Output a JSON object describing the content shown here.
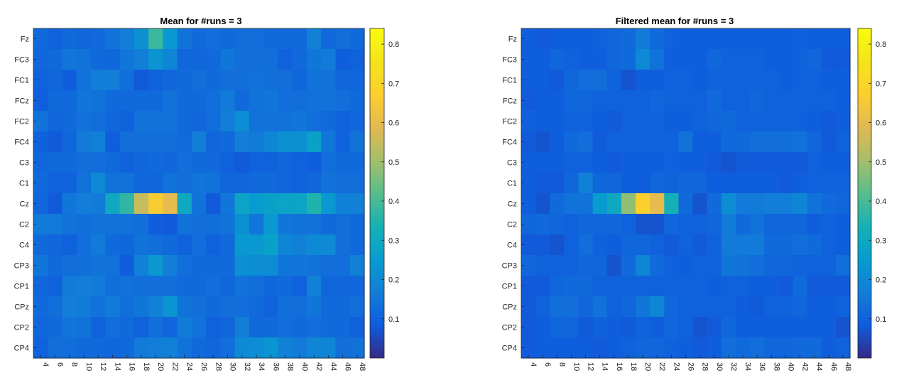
{
  "chart_data": [
    {
      "type": "heatmap",
      "title": "Mean for #runs = 3",
      "x": [
        4,
        6,
        8,
        10,
        12,
        14,
        16,
        18,
        20,
        22,
        24,
        26,
        28,
        30,
        32,
        34,
        36,
        38,
        40,
        42,
        44,
        46,
        48
      ],
      "xticks": [
        "4",
        "6",
        "8",
        "10",
        "12",
        "14",
        "16",
        "18",
        "20",
        "22",
        "24",
        "26",
        "28",
        "30",
        "32",
        "34",
        "36",
        "38",
        "40",
        "42",
        "44",
        "46",
        "48"
      ],
      "y": [
        "Fz",
        "FC3",
        "FC1",
        "FCz",
        "FC2",
        "FC4",
        "C3",
        "C1",
        "Cz",
        "C2",
        "C4",
        "CP3",
        "CP1",
        "CPz",
        "CP2",
        "CP4"
      ],
      "xlim": [
        3,
        49
      ],
      "colorbar": {
        "min": 0,
        "max": 0.84,
        "ticks": [
          0.1,
          0.2,
          0.3,
          0.4,
          0.5,
          0.6,
          0.7,
          0.8
        ],
        "tick_labels": [
          "0.1",
          "0.2",
          "0.3",
          "0.4",
          "0.5",
          "0.6",
          "0.7",
          "0.8"
        ],
        "colormap": "parula"
      },
      "values": [
        [
          0.12,
          0.1,
          0.12,
          0.11,
          0.12,
          0.14,
          0.17,
          0.22,
          0.38,
          0.24,
          0.14,
          0.12,
          0.13,
          0.12,
          0.13,
          0.13,
          0.12,
          0.12,
          0.12,
          0.18,
          0.12,
          0.13,
          0.12
        ],
        [
          0.11,
          0.12,
          0.15,
          0.14,
          0.12,
          0.11,
          0.15,
          0.17,
          0.23,
          0.19,
          0.11,
          0.11,
          0.12,
          0.15,
          0.13,
          0.13,
          0.13,
          0.1,
          0.12,
          0.15,
          0.16,
          0.09,
          0.1
        ],
        [
          0.1,
          0.11,
          0.09,
          0.14,
          0.17,
          0.17,
          0.13,
          0.08,
          0.1,
          0.11,
          0.12,
          0.13,
          0.12,
          0.13,
          0.13,
          0.14,
          0.13,
          0.13,
          0.11,
          0.14,
          0.14,
          0.11,
          0.11
        ],
        [
          0.09,
          0.12,
          0.12,
          0.15,
          0.14,
          0.12,
          0.12,
          0.12,
          0.12,
          0.14,
          0.12,
          0.12,
          0.13,
          0.16,
          0.12,
          0.14,
          0.15,
          0.13,
          0.13,
          0.14,
          0.14,
          0.13,
          0.12
        ],
        [
          0.14,
          0.11,
          0.12,
          0.14,
          0.13,
          0.11,
          0.1,
          0.14,
          0.14,
          0.14,
          0.12,
          0.11,
          0.13,
          0.17,
          0.21,
          0.14,
          0.14,
          0.14,
          0.15,
          0.13,
          0.12,
          0.1,
          0.11
        ],
        [
          0.1,
          0.08,
          0.11,
          0.16,
          0.18,
          0.09,
          0.13,
          0.13,
          0.13,
          0.13,
          0.12,
          0.17,
          0.11,
          0.12,
          0.17,
          0.16,
          0.19,
          0.22,
          0.22,
          0.27,
          0.15,
          0.1,
          0.14
        ],
        [
          0.11,
          0.12,
          0.12,
          0.13,
          0.13,
          0.12,
          0.1,
          0.11,
          0.12,
          0.11,
          0.13,
          0.12,
          0.12,
          0.1,
          0.08,
          0.1,
          0.1,
          0.11,
          0.1,
          0.09,
          0.13,
          0.12,
          0.12
        ],
        [
          0.12,
          0.1,
          0.1,
          0.14,
          0.2,
          0.14,
          0.14,
          0.11,
          0.11,
          0.14,
          0.13,
          0.15,
          0.14,
          0.11,
          0.11,
          0.12,
          0.12,
          0.11,
          0.1,
          0.11,
          0.14,
          0.13,
          0.13
        ],
        [
          0.11,
          0.08,
          0.15,
          0.17,
          0.16,
          0.3,
          0.37,
          0.55,
          0.66,
          0.6,
          0.3,
          0.14,
          0.08,
          0.15,
          0.28,
          0.25,
          0.27,
          0.28,
          0.28,
          0.35,
          0.24,
          0.18,
          0.18
        ],
        [
          0.16,
          0.16,
          0.14,
          0.13,
          0.14,
          0.14,
          0.14,
          0.13,
          0.09,
          0.08,
          0.14,
          0.13,
          0.13,
          0.14,
          0.22,
          0.15,
          0.24,
          0.15,
          0.14,
          0.14,
          0.12,
          0.13,
          0.12
        ],
        [
          0.12,
          0.11,
          0.1,
          0.13,
          0.16,
          0.12,
          0.11,
          0.14,
          0.13,
          0.12,
          0.1,
          0.13,
          0.1,
          0.12,
          0.24,
          0.24,
          0.27,
          0.19,
          0.18,
          0.2,
          0.2,
          0.13,
          0.12
        ],
        [
          0.15,
          0.12,
          0.13,
          0.13,
          0.14,
          0.14,
          0.09,
          0.18,
          0.24,
          0.17,
          0.13,
          0.12,
          0.12,
          0.12,
          0.22,
          0.21,
          0.21,
          0.15,
          0.15,
          0.14,
          0.13,
          0.13,
          0.18
        ],
        [
          0.11,
          0.1,
          0.16,
          0.17,
          0.16,
          0.13,
          0.14,
          0.13,
          0.13,
          0.13,
          0.12,
          0.12,
          0.13,
          0.11,
          0.14,
          0.13,
          0.11,
          0.12,
          0.1,
          0.18,
          0.11,
          0.11,
          0.11
        ],
        [
          0.12,
          0.13,
          0.17,
          0.16,
          0.14,
          0.16,
          0.13,
          0.15,
          0.18,
          0.23,
          0.14,
          0.13,
          0.12,
          0.13,
          0.13,
          0.12,
          0.1,
          0.13,
          0.13,
          0.15,
          0.12,
          0.12,
          0.13
        ],
        [
          0.11,
          0.12,
          0.15,
          0.14,
          0.1,
          0.13,
          0.12,
          0.1,
          0.13,
          0.11,
          0.16,
          0.14,
          0.1,
          0.11,
          0.17,
          0.12,
          0.12,
          0.13,
          0.12,
          0.13,
          0.12,
          0.12,
          0.1
        ],
        [
          0.1,
          0.13,
          0.13,
          0.12,
          0.12,
          0.11,
          0.12,
          0.16,
          0.17,
          0.18,
          0.14,
          0.12,
          0.11,
          0.13,
          0.2,
          0.21,
          0.23,
          0.18,
          0.16,
          0.19,
          0.19,
          0.13,
          0.14
        ]
      ]
    },
    {
      "type": "heatmap",
      "title": "Filtered mean for #runs = 3",
      "x": [
        4,
        6,
        8,
        10,
        12,
        14,
        16,
        18,
        20,
        22,
        24,
        26,
        28,
        30,
        32,
        34,
        36,
        38,
        40,
        42,
        44,
        46,
        48
      ],
      "xticks": [
        "4",
        "6",
        "8",
        "10",
        "12",
        "14",
        "16",
        "18",
        "20",
        "22",
        "24",
        "26",
        "28",
        "30",
        "32",
        "34",
        "36",
        "38",
        "40",
        "42",
        "44",
        "46",
        "48"
      ],
      "y": [
        "Fz",
        "FC3",
        "FC1",
        "FCz",
        "FC2",
        "FC4",
        "C3",
        "C1",
        "Cz",
        "C2",
        "C4",
        "CP3",
        "CP1",
        "CPz",
        "CP2",
        "CP4"
      ],
      "xlim": [
        3,
        49
      ],
      "colorbar": {
        "min": 0,
        "max": 0.84,
        "ticks": [
          0.1,
          0.2,
          0.3,
          0.4,
          0.5,
          0.6,
          0.7,
          0.8
        ],
        "tick_labels": [
          "0.1",
          "0.2",
          "0.3",
          "0.4",
          "0.5",
          "0.6",
          "0.7",
          "0.8"
        ],
        "colormap": "parula"
      },
      "values": [
        [
          0.09,
          0.08,
          0.09,
          0.09,
          0.09,
          0.1,
          0.11,
          0.12,
          0.16,
          0.12,
          0.1,
          0.09,
          0.09,
          0.09,
          0.09,
          0.09,
          0.09,
          0.09,
          0.09,
          0.1,
          0.09,
          0.09,
          0.09
        ],
        [
          0.09,
          0.09,
          0.11,
          0.1,
          0.09,
          0.09,
          0.11,
          0.12,
          0.2,
          0.14,
          0.09,
          0.09,
          0.09,
          0.11,
          0.1,
          0.1,
          0.1,
          0.09,
          0.09,
          0.1,
          0.11,
          0.08,
          0.08
        ],
        [
          0.09,
          0.09,
          0.08,
          0.11,
          0.13,
          0.13,
          0.1,
          0.07,
          0.09,
          0.09,
          0.1,
          0.1,
          0.09,
          0.1,
          0.1,
          0.1,
          0.1,
          0.1,
          0.09,
          0.1,
          0.1,
          0.09,
          0.09
        ],
        [
          0.08,
          0.09,
          0.09,
          0.11,
          0.11,
          0.1,
          0.1,
          0.1,
          0.1,
          0.11,
          0.1,
          0.1,
          0.1,
          0.12,
          0.1,
          0.1,
          0.11,
          0.1,
          0.1,
          0.1,
          0.1,
          0.1,
          0.09
        ],
        [
          0.1,
          0.09,
          0.09,
          0.1,
          0.1,
          0.09,
          0.08,
          0.1,
          0.1,
          0.1,
          0.09,
          0.09,
          0.1,
          0.11,
          0.12,
          0.1,
          0.1,
          0.1,
          0.1,
          0.1,
          0.09,
          0.08,
          0.09
        ],
        [
          0.08,
          0.07,
          0.09,
          0.12,
          0.13,
          0.08,
          0.1,
          0.1,
          0.1,
          0.1,
          0.1,
          0.14,
          0.09,
          0.09,
          0.12,
          0.12,
          0.13,
          0.13,
          0.13,
          0.14,
          0.11,
          0.08,
          0.1
        ],
        [
          0.09,
          0.09,
          0.09,
          0.1,
          0.1,
          0.09,
          0.08,
          0.09,
          0.09,
          0.09,
          0.1,
          0.09,
          0.09,
          0.08,
          0.07,
          0.08,
          0.08,
          0.08,
          0.08,
          0.08,
          0.1,
          0.09,
          0.09
        ],
        [
          0.09,
          0.08,
          0.08,
          0.11,
          0.18,
          0.11,
          0.11,
          0.09,
          0.09,
          0.11,
          0.1,
          0.11,
          0.11,
          0.09,
          0.09,
          0.09,
          0.09,
          0.09,
          0.08,
          0.09,
          0.1,
          0.1,
          0.1
        ],
        [
          0.09,
          0.07,
          0.12,
          0.14,
          0.14,
          0.25,
          0.3,
          0.48,
          0.68,
          0.6,
          0.33,
          0.12,
          0.07,
          0.12,
          0.21,
          0.16,
          0.16,
          0.17,
          0.17,
          0.19,
          0.14,
          0.12,
          0.11
        ],
        [
          0.11,
          0.12,
          0.11,
          0.1,
          0.11,
          0.11,
          0.11,
          0.1,
          0.07,
          0.07,
          0.11,
          0.1,
          0.1,
          0.11,
          0.16,
          0.12,
          0.14,
          0.11,
          0.11,
          0.11,
          0.09,
          0.1,
          0.09
        ],
        [
          0.08,
          0.08,
          0.07,
          0.1,
          0.13,
          0.1,
          0.09,
          0.11,
          0.11,
          0.1,
          0.08,
          0.1,
          0.08,
          0.1,
          0.16,
          0.16,
          0.16,
          0.12,
          0.12,
          0.13,
          0.12,
          0.1,
          0.09
        ],
        [
          0.11,
          0.1,
          0.1,
          0.1,
          0.11,
          0.11,
          0.07,
          0.12,
          0.19,
          0.12,
          0.1,
          0.09,
          0.1,
          0.1,
          0.15,
          0.14,
          0.13,
          0.11,
          0.11,
          0.1,
          0.1,
          0.1,
          0.13
        ],
        [
          0.08,
          0.08,
          0.11,
          0.12,
          0.12,
          0.1,
          0.1,
          0.1,
          0.1,
          0.1,
          0.1,
          0.1,
          0.1,
          0.09,
          0.1,
          0.1,
          0.09,
          0.09,
          0.08,
          0.12,
          0.08,
          0.08,
          0.08
        ],
        [
          0.08,
          0.1,
          0.13,
          0.13,
          0.11,
          0.14,
          0.1,
          0.11,
          0.15,
          0.19,
          0.11,
          0.1,
          0.1,
          0.1,
          0.1,
          0.09,
          0.08,
          0.1,
          0.1,
          0.11,
          0.09,
          0.09,
          0.1
        ],
        [
          0.08,
          0.09,
          0.11,
          0.11,
          0.08,
          0.1,
          0.09,
          0.08,
          0.1,
          0.09,
          0.11,
          0.1,
          0.07,
          0.08,
          0.11,
          0.09,
          0.09,
          0.09,
          0.09,
          0.09,
          0.09,
          0.09,
          0.07
        ],
        [
          0.08,
          0.09,
          0.09,
          0.09,
          0.09,
          0.08,
          0.09,
          0.1,
          0.11,
          0.11,
          0.1,
          0.09,
          0.08,
          0.09,
          0.13,
          0.12,
          0.13,
          0.11,
          0.11,
          0.12,
          0.12,
          0.09,
          0.1
        ]
      ]
    }
  ]
}
